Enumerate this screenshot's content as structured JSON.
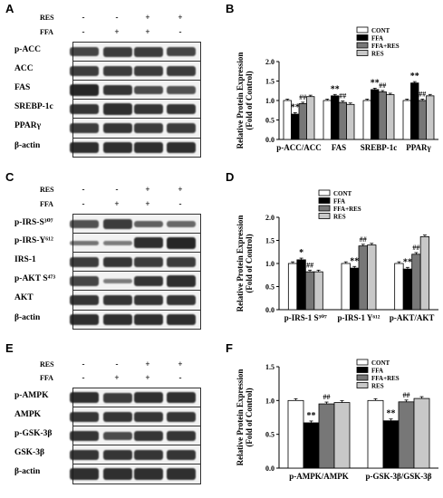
{
  "panels": [
    {
      "letter": "A",
      "treatments": [
        {
          "label": "RES",
          "values": [
            "-",
            "-",
            "+",
            "+"
          ]
        },
        {
          "label": "FFA",
          "values": [
            "-",
            "+",
            "+",
            "-"
          ]
        }
      ],
      "bands": [
        "p-ACC",
        "ACC",
        "FAS",
        "SREBP-1c",
        "PPARγ",
        "β-actin"
      ],
      "band_intensity": [
        [
          0.7,
          0.75,
          0.75,
          0.7
        ],
        [
          0.75,
          0.75,
          0.75,
          0.75
        ],
        [
          0.9,
          0.8,
          0.65,
          0.6
        ],
        [
          0.8,
          0.85,
          0.8,
          0.8
        ],
        [
          0.75,
          0.8,
          0.75,
          0.75
        ],
        [
          0.85,
          0.85,
          0.85,
          0.85
        ]
      ]
    },
    {
      "letter": "C",
      "treatments": [
        {
          "label": "RES",
          "values": [
            "-",
            "-",
            "+",
            "+"
          ]
        },
        {
          "label": "FFA",
          "values": [
            "-",
            "+",
            "+",
            "-"
          ]
        }
      ],
      "bands": [
        "p-IRS-S³⁰⁷",
        "p-IRS-Y⁶¹²",
        "IRS-1",
        "p-AKT S⁴⁷³",
        "AKT",
        "β-actin"
      ],
      "band_intensity": [
        [
          0.6,
          0.75,
          0.5,
          0.45
        ],
        [
          0.35,
          0.3,
          0.85,
          0.9
        ],
        [
          0.75,
          0.8,
          0.75,
          0.75
        ],
        [
          0.7,
          0.3,
          0.8,
          0.85
        ],
        [
          0.8,
          0.8,
          0.8,
          0.8
        ],
        [
          0.85,
          0.85,
          0.85,
          0.85
        ]
      ]
    },
    {
      "letter": "E",
      "treatments": [
        {
          "label": "RES",
          "values": [
            "-",
            "-",
            "+",
            "+"
          ]
        },
        {
          "label": "FFA",
          "values": [
            "-",
            "+",
            "+",
            "-"
          ]
        }
      ],
      "bands": [
        "p-AMPK",
        "AMPK",
        "p-GSK-3β",
        "GSK-3β",
        "β-actin"
      ],
      "band_intensity": [
        [
          0.85,
          0.75,
          0.85,
          0.85
        ],
        [
          0.8,
          0.8,
          0.8,
          0.8
        ],
        [
          0.8,
          0.65,
          0.8,
          0.8
        ],
        [
          0.8,
          0.8,
          0.8,
          0.8
        ],
        [
          0.85,
          0.85,
          0.85,
          0.85
        ]
      ]
    }
  ],
  "chart_data": [
    {
      "letter": "B",
      "type": "bar",
      "ylabel": "Relative Protein Expression",
      "ylabel2": "(Fold of Control)",
      "ylim": [
        0,
        2.0
      ],
      "yticks": [
        "0.0",
        "0.5",
        "1.0",
        "1.5",
        "2.0"
      ],
      "ytick_values": [
        0,
        0.5,
        1.0,
        1.5,
        2.0
      ],
      "categories": [
        "p-ACC/ACC",
        "FAS",
        "SREBP-1c",
        "PPARγ"
      ],
      "legend_position": "top-right",
      "series": [
        {
          "name": "CONT",
          "color": "#ffffff",
          "values": [
            1.0,
            1.0,
            1.0,
            1.0
          ]
        },
        {
          "name": "FFA",
          "color": "#000000",
          "values": [
            0.65,
            1.12,
            1.28,
            1.45
          ]
        },
        {
          "name": "FFA+RES",
          "color": "#777777",
          "values": [
            0.92,
            0.95,
            1.22,
            1.0
          ]
        },
        {
          "name": "RES",
          "color": "#c8c8c8",
          "values": [
            1.1,
            0.9,
            1.15,
            1.12
          ]
        }
      ],
      "annotations": [
        {
          "category": 0,
          "series": 1,
          "text": "**"
        },
        {
          "category": 0,
          "series": 2,
          "text": "##"
        },
        {
          "category": 1,
          "series": 1,
          "text": "**"
        },
        {
          "category": 1,
          "series": 2,
          "text": "##"
        },
        {
          "category": 2,
          "series": 1,
          "text": "**"
        },
        {
          "category": 2,
          "series": 2,
          "text": "##"
        },
        {
          "category": 3,
          "series": 1,
          "text": "**"
        },
        {
          "category": 3,
          "series": 2,
          "text": "##"
        }
      ]
    },
    {
      "letter": "D",
      "type": "bar",
      "ylabel": "Relative Protein Expression",
      "ylabel2": "(Fold of Control)",
      "ylim": [
        0,
        2.0
      ],
      "yticks": [
        "0.0",
        "0.5",
        "1.0",
        "1.5",
        "2.0"
      ],
      "ytick_values": [
        0,
        0.5,
        1.0,
        1.5,
        2.0
      ],
      "categories": [
        "p-IRS-1 S³⁰⁷",
        "p-IRS-1 Y⁶¹²",
        "p-AKT/AKT"
      ],
      "legend_position": "top-left",
      "series": [
        {
          "name": "CONT",
          "color": "#ffffff",
          "values": [
            1.0,
            1.0,
            1.0
          ]
        },
        {
          "name": "FFA",
          "color": "#000000",
          "values": [
            1.08,
            0.9,
            0.88
          ]
        },
        {
          "name": "FFA+RES",
          "color": "#777777",
          "values": [
            0.82,
            1.38,
            1.2
          ]
        },
        {
          "name": "RES",
          "color": "#c8c8c8",
          "values": [
            0.82,
            1.4,
            1.58
          ]
        }
      ],
      "annotations": [
        {
          "category": 0,
          "series": 1,
          "text": "*"
        },
        {
          "category": 0,
          "series": 2,
          "text": "##"
        },
        {
          "category": 1,
          "series": 1,
          "text": "**"
        },
        {
          "category": 1,
          "series": 2,
          "text": "##"
        },
        {
          "category": 2,
          "series": 1,
          "text": "**"
        },
        {
          "category": 2,
          "series": 2,
          "text": "##"
        }
      ]
    },
    {
      "letter": "F",
      "type": "bar",
      "ylabel": "Relative Protein Expression",
      "ylabel2": "(Fold of Control)",
      "ylim": [
        0,
        1.5
      ],
      "yticks": [
        "0.0",
        "0.5",
        "1.0",
        "1.5"
      ],
      "ytick_values": [
        0,
        0.5,
        1.0,
        1.5
      ],
      "categories": [
        "p-AMPK/AMPK",
        "p-GSK-3β/GSK-3β"
      ],
      "legend_position": "top-right",
      "series": [
        {
          "name": "CONT",
          "color": "#ffffff",
          "values": [
            1.0,
            1.0
          ]
        },
        {
          "name": "FFA",
          "color": "#000000",
          "values": [
            0.67,
            0.7
          ]
        },
        {
          "name": "FFA+RES",
          "color": "#777777",
          "values": [
            0.95,
            0.98
          ]
        },
        {
          "name": "RES",
          "color": "#c8c8c8",
          "values": [
            0.97,
            1.03
          ]
        }
      ],
      "annotations": [
        {
          "category": 0,
          "series": 1,
          "text": "**"
        },
        {
          "category": 0,
          "series": 2,
          "text": "##"
        },
        {
          "category": 1,
          "series": 1,
          "text": "**"
        },
        {
          "category": 1,
          "series": 2,
          "text": "##"
        }
      ]
    }
  ]
}
